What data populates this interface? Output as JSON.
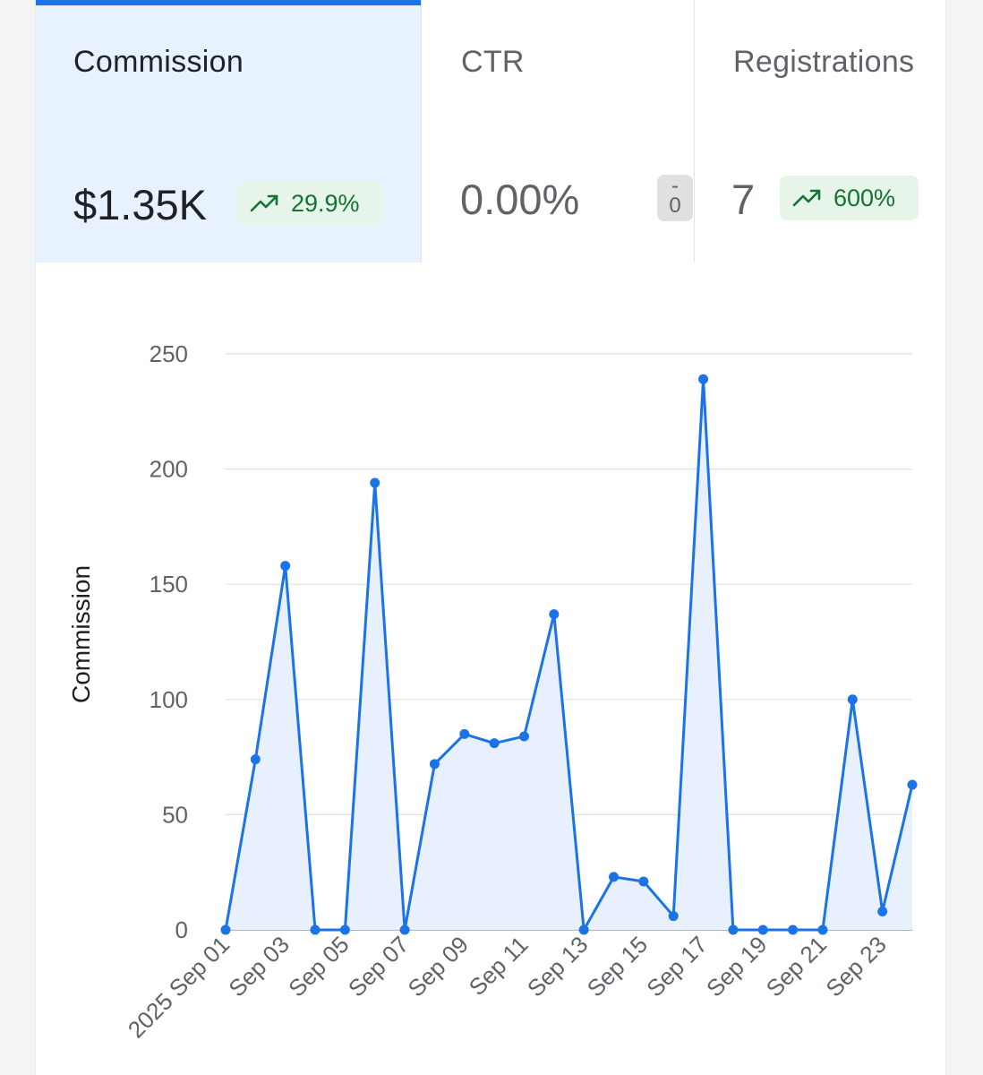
{
  "tabs": [
    {
      "label": "Commission",
      "value": "$1.35K",
      "change": "29.9%",
      "trend": "up"
    },
    {
      "label": "CTR",
      "value": "0.00%",
      "change_top": "-",
      "change_bottom": "0",
      "trend": "neutral"
    },
    {
      "label": "Registrations",
      "value": "7",
      "change": "600%",
      "trend": "up"
    }
  ],
  "colors": {
    "accent": "#1a73e8",
    "positive_bg": "#e6f4ea",
    "positive_text": "#137333"
  },
  "chart_data": {
    "type": "line",
    "ylabel": "Commission",
    "xlabel": "",
    "ylim": [
      0,
      250
    ],
    "yticks": [
      0,
      50,
      100,
      150,
      200,
      250
    ],
    "x": [
      "2025 Sep 01",
      "Sep 02",
      "Sep 03",
      "Sep 04",
      "Sep 05",
      "Sep 06",
      "Sep 07",
      "Sep 08",
      "Sep 09",
      "Sep 10",
      "Sep 11",
      "Sep 12",
      "Sep 13",
      "Sep 14",
      "Sep 15",
      "Sep 16",
      "Sep 17",
      "Sep 18",
      "Sep 19",
      "Sep 20",
      "Sep 21",
      "Sep 22",
      "Sep 23",
      "Sep 24"
    ],
    "tick_labels": [
      "2025 Sep 01",
      "Sep 03",
      "Sep 05",
      "Sep 07",
      "Sep 09",
      "Sep 11",
      "Sep 13",
      "Sep 15",
      "Sep 17",
      "Sep 19",
      "Sep 21",
      "Sep 23"
    ],
    "series": [
      {
        "name": "Commission",
        "values": [
          0,
          74,
          158,
          0,
          0,
          194,
          0,
          72,
          85,
          81,
          84,
          137,
          0,
          23,
          21,
          6,
          239,
          0,
          0,
          0,
          0,
          100,
          8,
          63
        ]
      }
    ],
    "grid": true,
    "fill": true
  }
}
